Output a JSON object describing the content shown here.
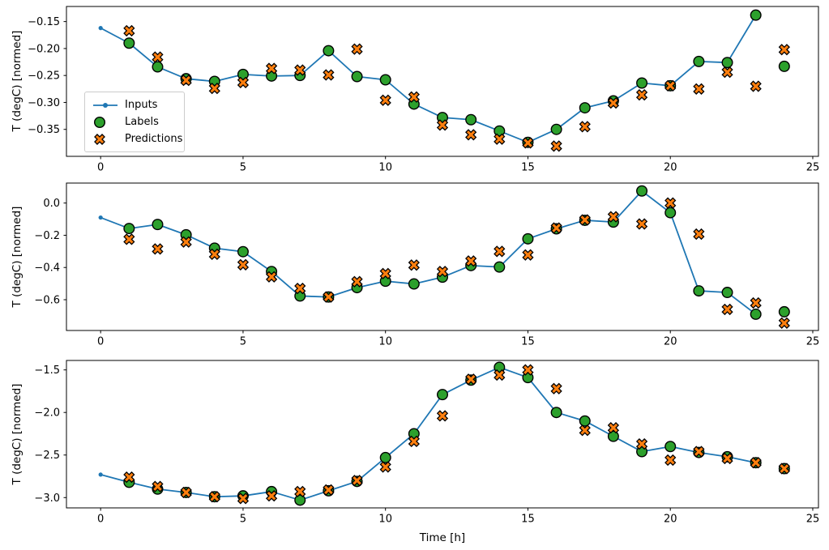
{
  "xlabel": "Time [h]",
  "legend": {
    "entries": [
      {
        "label": "Inputs",
        "marker": "line-dot"
      },
      {
        "label": "Labels",
        "marker": "circle"
      },
      {
        "label": "Predictions",
        "marker": "x-cross"
      }
    ]
  },
  "colors": {
    "inputs": "#1f77b4",
    "labels": "#2ca02c",
    "predictions": "#ff7f0e",
    "marker_edge": "#000000",
    "axis": "#000000"
  },
  "chart_data": [
    {
      "type": "line",
      "ylabel": "T (degC) [normed]",
      "ylim": [
        -0.4,
        -0.122
      ],
      "xlim": [
        -1.2,
        25.2
      ],
      "grid": false,
      "xticks": [
        {
          "label": "0",
          "value": 0
        },
        {
          "label": "5",
          "value": 5
        },
        {
          "label": "10",
          "value": 10
        },
        {
          "label": "15",
          "value": 15
        },
        {
          "label": "20",
          "value": 20
        },
        {
          "label": "25",
          "value": 25
        }
      ],
      "yticks": [
        {
          "label": "−0.15",
          "value": -0.15
        },
        {
          "label": "−0.20",
          "value": -0.2
        },
        {
          "label": "−0.25",
          "value": -0.25
        },
        {
          "label": "−0.30",
          "value": -0.3
        },
        {
          "label": "−0.35",
          "value": -0.35
        }
      ],
      "series": {
        "inputs": {
          "x0": 0,
          "y": [
            -0.162,
            -0.19,
            -0.234,
            -0.256,
            -0.261,
            -0.248,
            -0.251,
            -0.25,
            -0.204,
            -0.252,
            -0.258,
            -0.303,
            -0.328,
            -0.332,
            -0.353,
            -0.374,
            -0.35,
            -0.31,
            -0.297,
            -0.264,
            -0.269,
            -0.224,
            -0.226,
            -0.138
          ]
        },
        "labels": {
          "x0": 1,
          "y": [
            -0.19,
            -0.234,
            -0.256,
            -0.261,
            -0.248,
            -0.251,
            -0.25,
            -0.204,
            -0.252,
            -0.258,
            -0.303,
            -0.328,
            -0.332,
            -0.353,
            -0.374,
            -0.35,
            -0.31,
            -0.297,
            -0.264,
            -0.269,
            -0.224,
            -0.226,
            -0.138,
            -0.233
          ]
        },
        "predictions": {
          "x0": 1,
          "y": [
            -0.167,
            -0.216,
            -0.259,
            -0.274,
            -0.263,
            -0.237,
            -0.24,
            -0.249,
            -0.201,
            -0.296,
            -0.29,
            -0.342,
            -0.36,
            -0.368,
            -0.375,
            -0.381,
            -0.345,
            -0.301,
            -0.286,
            -0.269,
            -0.275,
            -0.244,
            -0.27,
            -0.202
          ]
        }
      }
    },
    {
      "type": "line",
      "ylabel": "T (degC) [normed]",
      "ylim": [
        -0.791,
        0.124
      ],
      "xlim": [
        -1.2,
        25.2
      ],
      "grid": false,
      "xticks": [
        {
          "label": "0",
          "value": 0
        },
        {
          "label": "5",
          "value": 5
        },
        {
          "label": "10",
          "value": 10
        },
        {
          "label": "15",
          "value": 15
        },
        {
          "label": "20",
          "value": 20
        },
        {
          "label": "25",
          "value": 25
        }
      ],
      "yticks": [
        {
          "label": "0.0",
          "value": 0.0
        },
        {
          "label": "−0.2",
          "value": -0.2
        },
        {
          "label": "−0.4",
          "value": -0.4
        },
        {
          "label": "−0.6",
          "value": -0.6
        }
      ],
      "series": {
        "inputs": {
          "x0": 0,
          "y": [
            -0.09,
            -0.158,
            -0.133,
            -0.197,
            -0.28,
            -0.302,
            -0.425,
            -0.577,
            -0.583,
            -0.525,
            -0.485,
            -0.502,
            -0.46,
            -0.388,
            -0.397,
            -0.222,
            -0.16,
            -0.107,
            -0.118,
            0.075,
            -0.06,
            -0.545,
            -0.555,
            -0.69
          ]
        },
        "labels": {
          "x0": 1,
          "y": [
            -0.158,
            -0.133,
            -0.197,
            -0.28,
            -0.302,
            -0.425,
            -0.577,
            -0.583,
            -0.525,
            -0.485,
            -0.502,
            -0.46,
            -0.388,
            -0.397,
            -0.222,
            -0.16,
            -0.107,
            -0.118,
            0.075,
            -0.06,
            -0.545,
            -0.555,
            -0.69,
            -0.675
          ]
        },
        "predictions": {
          "x0": 1,
          "y": [
            -0.225,
            -0.285,
            -0.242,
            -0.318,
            -0.383,
            -0.458,
            -0.53,
            -0.583,
            -0.488,
            -0.438,
            -0.385,
            -0.425,
            -0.36,
            -0.3,
            -0.322,
            -0.155,
            -0.105,
            -0.085,
            -0.13,
            0.0,
            -0.193,
            -0.66,
            -0.62,
            -0.745
          ]
        }
      }
    },
    {
      "type": "line",
      "ylabel": "T (degC) [normed]",
      "ylim": [
        -3.121,
        -1.389
      ],
      "xlim": [
        -1.2,
        25.2
      ],
      "grid": false,
      "xticks": [
        {
          "label": "0",
          "value": 0
        },
        {
          "label": "5",
          "value": 5
        },
        {
          "label": "10",
          "value": 10
        },
        {
          "label": "15",
          "value": 15
        },
        {
          "label": "20",
          "value": 20
        },
        {
          "label": "25",
          "value": 25
        }
      ],
      "yticks": [
        {
          "label": "−1.5",
          "value": -1.5
        },
        {
          "label": "−2.0",
          "value": -2.0
        },
        {
          "label": "−2.5",
          "value": -2.5
        },
        {
          "label": "−3.0",
          "value": -3.0
        }
      ],
      "series": {
        "inputs": {
          "x0": 0,
          "y": [
            -2.73,
            -2.82,
            -2.9,
            -2.94,
            -2.99,
            -2.98,
            -2.93,
            -3.03,
            -2.92,
            -2.81,
            -2.53,
            -2.25,
            -1.79,
            -1.62,
            -1.47,
            -1.59,
            -2.0,
            -2.1,
            -2.28,
            -2.46,
            -2.4,
            -2.47,
            -2.52,
            -2.59
          ]
        },
        "labels": {
          "x0": 1,
          "y": [
            -2.82,
            -2.9,
            -2.94,
            -2.99,
            -2.98,
            -2.93,
            -3.03,
            -2.92,
            -2.81,
            -2.53,
            -2.25,
            -1.79,
            -1.62,
            -1.47,
            -1.59,
            -2.0,
            -2.1,
            -2.28,
            -2.46,
            -2.4,
            -2.47,
            -2.52,
            -2.59,
            -2.66
          ]
        },
        "predictions": {
          "x0": 1,
          "y": [
            -2.76,
            -2.87,
            -2.94,
            -2.99,
            -3.01,
            -2.98,
            -2.93,
            -2.91,
            -2.8,
            -2.64,
            -2.34,
            -2.04,
            -1.61,
            -1.56,
            -1.5,
            -1.72,
            -2.21,
            -2.18,
            -2.37,
            -2.56,
            -2.46,
            -2.54,
            -2.59,
            -2.66
          ]
        }
      }
    }
  ]
}
